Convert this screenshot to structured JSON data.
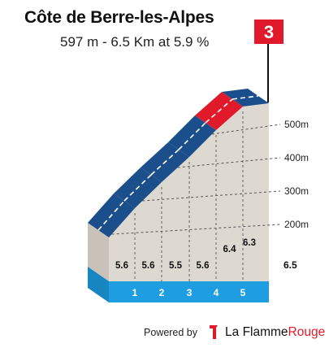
{
  "title": "Côte de Berre-les-Alpes",
  "subtitle": "597 m - 6.5 Km at 5.9 %",
  "category": "3",
  "footer": {
    "powered_by": "Powered by",
    "brand_name": "La Flamme",
    "brand_accent": "Rouge"
  },
  "colors": {
    "steep_segment": "#e0192b",
    "moderate_segment": "#1b4f8c",
    "km_band": "#1e9ee0",
    "profile_fill": "#ddd8d0",
    "flag": "#e0192b"
  },
  "chart_data": {
    "type": "area",
    "x_unit": "km",
    "y_unit": "m",
    "km_markers": [
      "1",
      "2",
      "3",
      "4",
      "5"
    ],
    "segments": [
      {
        "km_start": 0,
        "km_end": 1,
        "gradient": 5.6,
        "color_class": "moderate"
      },
      {
        "km_start": 1,
        "km_end": 2,
        "gradient": 5.6,
        "color_class": "moderate"
      },
      {
        "km_start": 2,
        "km_end": 3,
        "gradient": 5.5,
        "color_class": "moderate"
      },
      {
        "km_start": 3,
        "km_end": 4,
        "gradient": 5.6,
        "color_class": "moderate"
      },
      {
        "km_start": 4,
        "km_end": 5,
        "gradient": 6.4,
        "color_class": "steep"
      },
      {
        "km_start": 5,
        "km_end": 6.5,
        "gradient": 6.3,
        "color_class": "moderate"
      }
    ],
    "gradient_labels": [
      "5.6",
      "5.6",
      "5.5",
      "5.6",
      "6.4",
      "6.3"
    ],
    "total_distance_label": "6.5",
    "elevation_ticks": [
      {
        "value": 200,
        "label": "200m"
      },
      {
        "value": 300,
        "label": "300m"
      },
      {
        "value": 400,
        "label": "400m"
      },
      {
        "value": 500,
        "label": "500m"
      }
    ],
    "elevation_start": 214,
    "elevation_end": 597
  }
}
